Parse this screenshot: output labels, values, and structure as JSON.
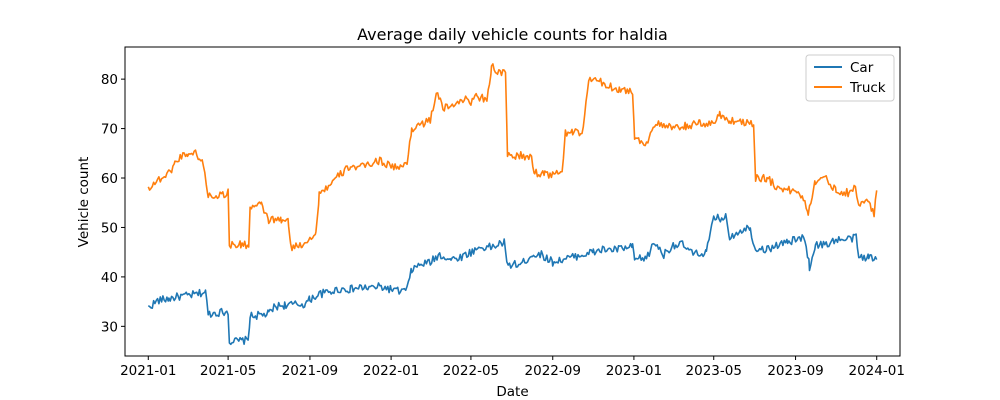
{
  "chart_data": {
    "type": "line",
    "title": "Average daily vehicle counts for haldia",
    "xlabel": "Date",
    "ylabel": "Vehicle count",
    "xlim": [
      "2020-11-27",
      "2024-02-05"
    ],
    "ylim": [
      24.0,
      86.5
    ],
    "x_ticks": [
      "2021-01",
      "2021-05",
      "2021-09",
      "2022-01",
      "2022-05",
      "2022-09",
      "2023-01",
      "2023-05",
      "2023-09",
      "2024-01"
    ],
    "y_ticks": [
      30,
      40,
      50,
      60,
      70,
      80
    ],
    "legend": "top-right",
    "grid": false,
    "series": [
      {
        "name": "Car",
        "color": "#1f77b4",
        "points": [
          [
            "2021-01-01",
            33.8
          ],
          [
            "2021-01-15",
            35.2
          ],
          [
            "2021-02-01",
            35.6
          ],
          [
            "2021-02-15",
            36.0
          ],
          [
            "2021-03-01",
            36.2
          ],
          [
            "2021-03-15",
            36.5
          ],
          [
            "2021-03-28",
            37.0
          ],
          [
            "2021-04-01",
            32.5
          ],
          [
            "2021-04-15",
            32.8
          ],
          [
            "2021-05-01",
            33.0
          ],
          [
            "2021-05-03",
            27.0
          ],
          [
            "2021-05-15",
            27.0
          ],
          [
            "2021-05-31",
            27.2
          ],
          [
            "2021-06-03",
            32.0
          ],
          [
            "2021-06-20",
            32.3
          ],
          [
            "2021-07-01",
            32.5
          ],
          [
            "2021-07-10",
            34.0
          ],
          [
            "2021-07-25",
            34.3
          ],
          [
            "2021-08-10",
            34.4
          ],
          [
            "2021-08-25",
            34.5
          ],
          [
            "2021-09-01",
            35.5
          ],
          [
            "2021-09-15",
            36.5
          ],
          [
            "2021-10-01",
            37.0
          ],
          [
            "2021-10-15",
            37.5
          ],
          [
            "2021-11-01",
            37.5
          ],
          [
            "2021-11-15",
            37.8
          ],
          [
            "2021-12-01",
            37.8
          ],
          [
            "2021-12-15",
            38.0
          ],
          [
            "2022-01-01",
            37.5
          ],
          [
            "2022-01-15",
            37.0
          ],
          [
            "2022-01-25",
            37.5
          ],
          [
            "2022-02-01",
            41.5
          ],
          [
            "2022-02-15",
            42.5
          ],
          [
            "2022-03-01",
            43.0
          ],
          [
            "2022-03-15",
            44.5
          ],
          [
            "2022-04-01",
            43.5
          ],
          [
            "2022-04-15",
            44.0
          ],
          [
            "2022-05-01",
            45.0
          ],
          [
            "2022-05-15",
            46.0
          ],
          [
            "2022-06-01",
            46.0
          ],
          [
            "2022-06-20",
            47.0
          ],
          [
            "2022-06-24",
            42.5
          ],
          [
            "2022-07-15",
            42.5
          ],
          [
            "2022-08-01",
            44.5
          ],
          [
            "2022-08-15",
            44.5
          ],
          [
            "2022-09-01",
            43.0
          ],
          [
            "2022-09-15",
            43.5
          ],
          [
            "2022-10-01",
            44.0
          ],
          [
            "2022-10-15",
            44.5
          ],
          [
            "2022-11-01",
            45.0
          ],
          [
            "2022-11-15",
            45.5
          ],
          [
            "2022-12-01",
            45.5
          ],
          [
            "2022-12-30",
            46.0
          ],
          [
            "2023-01-02",
            43.5
          ],
          [
            "2023-01-20",
            43.8
          ],
          [
            "2023-02-01",
            47.0
          ],
          [
            "2023-02-15",
            44.5
          ],
          [
            "2023-03-01",
            46.5
          ],
          [
            "2023-03-15",
            46.5
          ],
          [
            "2023-04-01",
            44.5
          ],
          [
            "2023-04-20",
            45.0
          ],
          [
            "2023-05-01",
            51.8
          ],
          [
            "2023-05-20",
            52.0
          ],
          [
            "2023-05-25",
            48.0
          ],
          [
            "2023-06-10",
            49.5
          ],
          [
            "2023-06-25",
            50.0
          ],
          [
            "2023-07-01",
            46.0
          ],
          [
            "2023-07-20",
            45.5
          ],
          [
            "2023-08-05",
            46.5
          ],
          [
            "2023-08-20",
            47.0
          ],
          [
            "2023-09-01",
            47.5
          ],
          [
            "2023-09-15",
            48.0
          ],
          [
            "2023-09-22",
            42.0
          ],
          [
            "2023-10-01",
            46.5
          ],
          [
            "2023-10-15",
            46.5
          ],
          [
            "2023-11-01",
            47.5
          ],
          [
            "2023-11-15",
            47.5
          ],
          [
            "2023-12-01",
            48.0
          ],
          [
            "2023-12-05",
            44.0
          ],
          [
            "2023-12-20",
            44.0
          ],
          [
            "2024-01-01",
            43.5
          ]
        ]
      },
      {
        "name": "Truck",
        "color": "#ff7f0e",
        "points": [
          [
            "2021-01-01",
            58.0
          ],
          [
            "2021-01-15",
            59.5
          ],
          [
            "2021-02-01",
            61.0
          ],
          [
            "2021-02-10",
            63.0
          ],
          [
            "2021-02-20",
            64.5
          ],
          [
            "2021-03-01",
            65.0
          ],
          [
            "2021-03-15",
            65.0
          ],
          [
            "2021-03-25",
            62.5
          ],
          [
            "2021-04-01",
            56.5
          ],
          [
            "2021-04-15",
            56.5
          ],
          [
            "2021-05-01",
            57.0
          ],
          [
            "2021-05-03",
            46.5
          ],
          [
            "2021-05-20",
            46.5
          ],
          [
            "2021-06-01",
            46.5
          ],
          [
            "2021-06-03",
            54.0
          ],
          [
            "2021-06-20",
            54.5
          ],
          [
            "2021-07-01",
            51.5
          ],
          [
            "2021-07-20",
            51.5
          ],
          [
            "2021-07-31",
            51.0
          ],
          [
            "2021-08-03",
            46.0
          ],
          [
            "2021-08-20",
            46.5
          ],
          [
            "2021-09-01",
            48.0
          ],
          [
            "2021-09-10",
            48.5
          ],
          [
            "2021-09-15",
            57.0
          ],
          [
            "2021-10-01",
            58.5
          ],
          [
            "2021-10-15",
            60.5
          ],
          [
            "2021-11-01",
            62.5
          ],
          [
            "2021-11-15",
            62.0
          ],
          [
            "2021-12-01",
            63.0
          ],
          [
            "2021-12-15",
            63.5
          ],
          [
            "2022-01-01",
            62.5
          ],
          [
            "2022-01-15",
            62.0
          ],
          [
            "2022-01-25",
            63.0
          ],
          [
            "2022-02-01",
            70.0
          ],
          [
            "2022-02-15",
            71.0
          ],
          [
            "2022-03-01",
            71.5
          ],
          [
            "2022-03-10",
            77.5
          ],
          [
            "2022-03-20",
            74.0
          ],
          [
            "2022-04-01",
            74.5
          ],
          [
            "2022-04-15",
            76.0
          ],
          [
            "2022-05-01",
            75.5
          ],
          [
            "2022-05-10",
            76.5
          ],
          [
            "2022-05-25",
            76.0
          ],
          [
            "2022-06-01",
            82.5
          ],
          [
            "2022-06-10",
            81.5
          ],
          [
            "2022-06-22",
            81.0
          ],
          [
            "2022-06-25",
            64.5
          ],
          [
            "2022-07-15",
            64.5
          ],
          [
            "2022-07-31",
            64.0
          ],
          [
            "2022-08-05",
            61.0
          ],
          [
            "2022-08-20",
            61.0
          ],
          [
            "2022-09-01",
            60.5
          ],
          [
            "2022-09-15",
            61.5
          ],
          [
            "2022-09-20",
            69.0
          ],
          [
            "2022-10-01",
            69.5
          ],
          [
            "2022-10-15",
            68.5
          ],
          [
            "2022-10-25",
            80.0
          ],
          [
            "2022-11-10",
            79.5
          ],
          [
            "2022-11-25",
            78.5
          ],
          [
            "2022-12-10",
            78.0
          ],
          [
            "2022-12-30",
            77.5
          ],
          [
            "2023-01-02",
            68.0
          ],
          [
            "2023-01-20",
            67.0
          ],
          [
            "2023-02-01",
            71.0
          ],
          [
            "2023-02-15",
            70.5
          ],
          [
            "2023-03-01",
            70.0
          ],
          [
            "2023-03-20",
            70.5
          ],
          [
            "2023-04-10",
            71.0
          ],
          [
            "2023-05-01",
            71.0
          ],
          [
            "2023-05-10",
            73.0
          ],
          [
            "2023-05-25",
            71.5
          ],
          [
            "2023-06-10",
            71.5
          ],
          [
            "2023-06-30",
            71.0
          ],
          [
            "2023-07-03",
            60.0
          ],
          [
            "2023-07-20",
            60.0
          ],
          [
            "2023-08-01",
            58.5
          ],
          [
            "2023-08-20",
            57.5
          ],
          [
            "2023-09-01",
            57.5
          ],
          [
            "2023-09-15",
            55.5
          ],
          [
            "2023-09-20",
            53.0
          ],
          [
            "2023-10-01",
            59.5
          ],
          [
            "2023-10-15",
            60.0
          ],
          [
            "2023-11-01",
            57.5
          ],
          [
            "2023-11-20",
            57.0
          ],
          [
            "2023-11-28",
            58.5
          ],
          [
            "2023-12-05",
            55.0
          ],
          [
            "2023-12-20",
            55.0
          ],
          [
            "2023-12-28",
            53.0
          ],
          [
            "2024-01-01",
            57.5
          ]
        ]
      }
    ]
  }
}
